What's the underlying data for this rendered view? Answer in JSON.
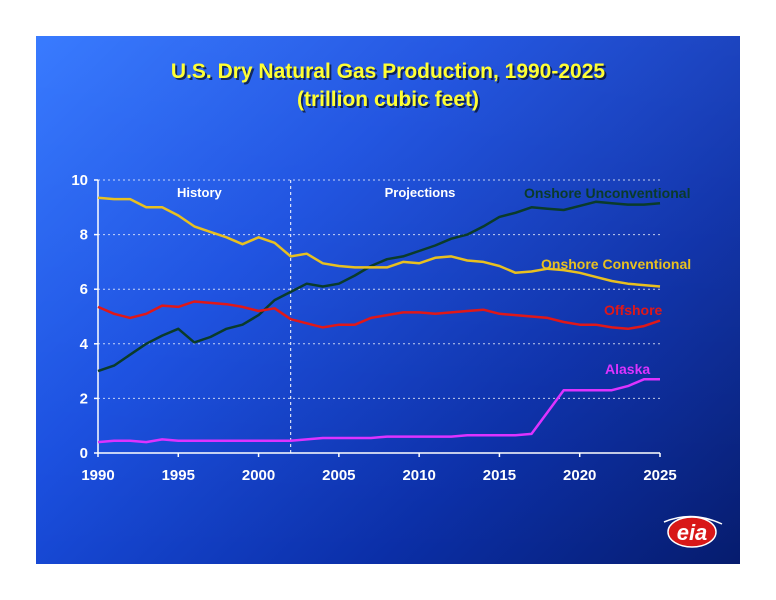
{
  "chart_data": {
    "type": "line",
    "title": "U.S. Dry Natural Gas Production, 1990-2025",
    "subtitle": "(trillion cubic feet)",
    "xlim": [
      1990,
      2025
    ],
    "ylim": [
      0,
      10
    ],
    "x_ticks": [
      "1990",
      "1995",
      "2000",
      "2005",
      "2010",
      "2015",
      "2020",
      "2025"
    ],
    "y_ticks": [
      "0",
      "2",
      "4",
      "6",
      "8",
      "10"
    ],
    "grid": true,
    "phase_divider_x": 2002,
    "phases": [
      "History",
      "Projections"
    ],
    "x": [
      1990,
      1991,
      1992,
      1993,
      1994,
      1995,
      1996,
      1997,
      1998,
      1999,
      2000,
      2001,
      2002,
      2003,
      2004,
      2005,
      2006,
      2007,
      2008,
      2009,
      2010,
      2011,
      2012,
      2013,
      2014,
      2015,
      2016,
      2017,
      2018,
      2019,
      2020,
      2021,
      2022,
      2023,
      2024,
      2025
    ],
    "series": [
      {
        "name": "Onshore Unconventional",
        "color": "#0a3b2a",
        "values": [
          3.0,
          3.2,
          3.6,
          4.0,
          4.3,
          4.55,
          4.05,
          4.25,
          4.55,
          4.7,
          5.05,
          5.6,
          5.9,
          6.2,
          6.1,
          6.2,
          6.5,
          6.85,
          7.1,
          7.2,
          7.4,
          7.6,
          7.85,
          8.0,
          8.3,
          8.65,
          8.8,
          9.0,
          8.95,
          8.9,
          9.05,
          9.2,
          9.15,
          9.1,
          9.1,
          9.15
        ]
      },
      {
        "name": "Onshore Conventional",
        "color": "#e8c020",
        "values": [
          9.35,
          9.3,
          9.3,
          9.0,
          9.0,
          8.7,
          8.3,
          8.1,
          7.9,
          7.65,
          7.9,
          7.7,
          7.2,
          7.3,
          6.95,
          6.85,
          6.8,
          6.8,
          6.8,
          7.0,
          6.95,
          7.15,
          7.2,
          7.05,
          7.0,
          6.85,
          6.6,
          6.65,
          6.75,
          6.7,
          6.6,
          6.45,
          6.3,
          6.2,
          6.15,
          6.1
        ]
      },
      {
        "name": "Offshore",
        "color": "#e01818",
        "values": [
          5.35,
          5.1,
          4.95,
          5.1,
          5.4,
          5.35,
          5.55,
          5.5,
          5.45,
          5.35,
          5.2,
          5.3,
          4.9,
          4.75,
          4.6,
          4.7,
          4.7,
          4.95,
          5.05,
          5.15,
          5.15,
          5.1,
          5.15,
          5.2,
          5.25,
          5.1,
          5.05,
          5.0,
          4.95,
          4.8,
          4.7,
          4.7,
          4.6,
          4.55,
          4.65,
          4.85
        ]
      },
      {
        "name": "Alaska",
        "color": "#dd33ff",
        "values": [
          0.4,
          0.45,
          0.45,
          0.4,
          0.5,
          0.45,
          0.45,
          0.45,
          0.45,
          0.45,
          0.45,
          0.45,
          0.45,
          0.5,
          0.55,
          0.55,
          0.55,
          0.55,
          0.6,
          0.6,
          0.6,
          0.6,
          0.6,
          0.65,
          0.65,
          0.65,
          0.65,
          0.7,
          1.5,
          2.3,
          2.3,
          2.3,
          2.3,
          2.45,
          2.7,
          2.7
        ]
      }
    ]
  },
  "logo": {
    "text": "eia",
    "color": "#d81818"
  }
}
